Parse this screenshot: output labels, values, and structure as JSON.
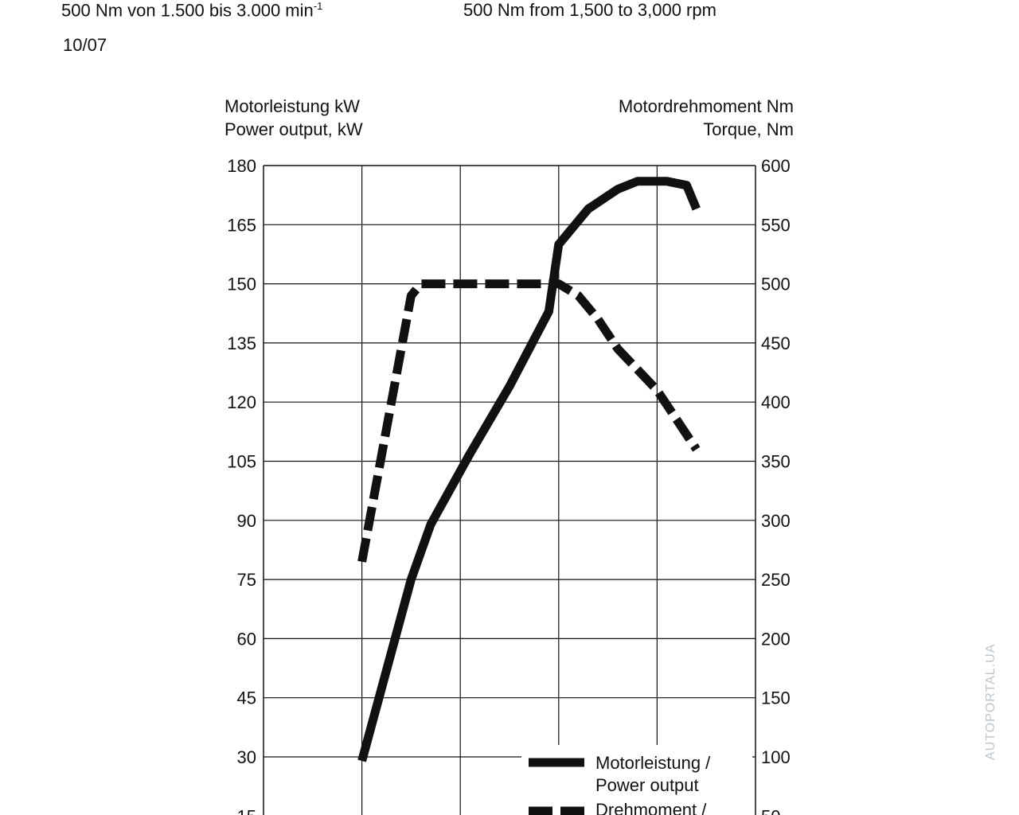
{
  "header": {
    "torque_de": "500 Nm von 1.500 bis 3.000 min",
    "torque_de_sup": "-1",
    "torque_en": "500 Nm from 1,500 to 3,000 rpm",
    "date": "10/07"
  },
  "watermark": "AUTOPORTAL.UA",
  "colors": {
    "line": "#111111",
    "grid": "#111111",
    "background": "#ffffff"
  },
  "chart_data": {
    "type": "line",
    "title": "",
    "left_axis": {
      "label_line1": "Motorleistung kW",
      "label_line2": "Power output, kW",
      "ticks": [
        15,
        30,
        45,
        60,
        75,
        90,
        105,
        120,
        135,
        150,
        165,
        180
      ],
      "range": [
        0,
        180
      ]
    },
    "right_axis": {
      "label_line1": "Motordrehmoment Nm",
      "label_line2": "Torque, Nm",
      "ticks": [
        50,
        100,
        150,
        200,
        250,
        300,
        350,
        400,
        450,
        500,
        550,
        600
      ],
      "range": [
        0,
        600
      ]
    },
    "x_axis": {
      "label": "",
      "range": [
        0,
        5
      ],
      "vertical_gridlines": [
        1,
        2,
        3,
        4
      ]
    },
    "grid": true,
    "legend_position": "bottom-right",
    "series": [
      {
        "name": "Motorleistung / Power output",
        "axis": "left",
        "style": "solid",
        "points": [
          [
            1.0,
            29
          ],
          [
            1.5,
            75
          ],
          [
            1.7,
            89
          ],
          [
            2.1,
            107
          ],
          [
            2.5,
            124
          ],
          [
            2.9,
            143
          ],
          [
            3.0,
            160
          ],
          [
            3.3,
            169
          ],
          [
            3.6,
            174
          ],
          [
            3.8,
            176
          ],
          [
            4.1,
            176
          ],
          [
            4.3,
            175
          ],
          [
            4.4,
            169
          ]
        ]
      },
      {
        "name": "Drehmoment / Torque",
        "axis": "right",
        "style": "dashed",
        "points": [
          [
            1.0,
            265
          ],
          [
            1.5,
            490
          ],
          [
            1.6,
            500
          ],
          [
            3.0,
            500
          ],
          [
            3.2,
            490
          ],
          [
            3.4,
            470
          ],
          [
            3.6,
            445
          ],
          [
            4.0,
            410
          ],
          [
            4.4,
            360
          ]
        ]
      }
    ]
  }
}
